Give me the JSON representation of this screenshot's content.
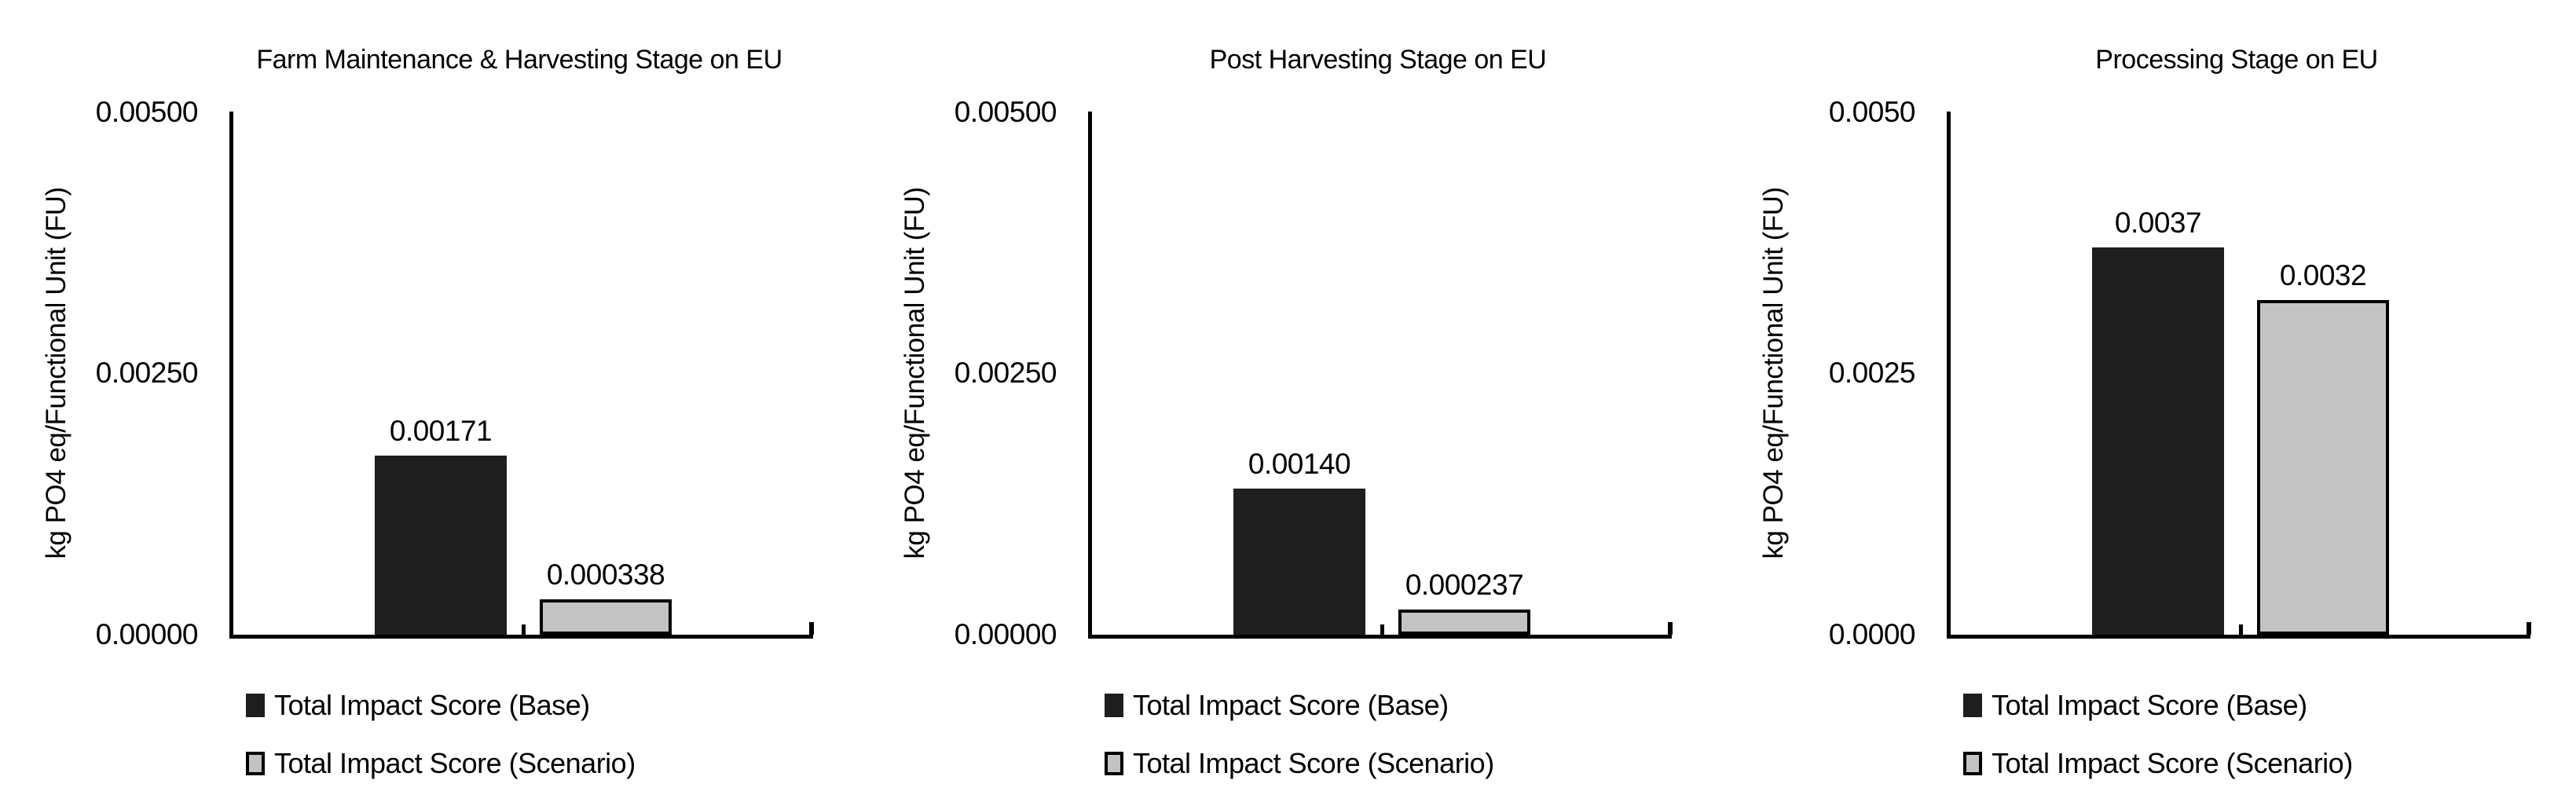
{
  "colors": {
    "base_series": "#1e1e1e",
    "scenario_series": "#c3c3c3",
    "axis": "#000000",
    "background": "#ffffff"
  },
  "chart_data": [
    {
      "type": "bar",
      "title": "Farm Maintenance & Harvesting Stage on EU",
      "ylabel": "kg PO4 eq/Functional Unit (FU)",
      "xlabel": "",
      "categories": [
        "Total Impact Score (Base)",
        "Total Impact Score (Scenario)"
      ],
      "values": [
        0.00171,
        0.000338
      ],
      "data_labels": [
        "0.00171",
        "0.000338"
      ],
      "ylim": [
        0,
        0.005
      ],
      "y_ticks_top_to_bottom": [
        "0.00500",
        "0.00250",
        "0.00000"
      ],
      "grid": false,
      "legend_position": "bottom-left"
    },
    {
      "type": "bar",
      "title": "Post Harvesting Stage on EU",
      "ylabel": "kg PO4 eq/Functional Unit (FU)",
      "xlabel": "",
      "categories": [
        "Total Impact Score (Base)",
        "Total Impact Score (Scenario)"
      ],
      "values": [
        0.0014,
        0.000237
      ],
      "data_labels": [
        "0.00140",
        "0.000237"
      ],
      "ylim": [
        0,
        0.005
      ],
      "y_ticks_top_to_bottom": [
        "0.00500",
        "0.00250",
        "0.00000"
      ],
      "grid": false,
      "legend_position": "bottom-left"
    },
    {
      "type": "bar",
      "title": "Processing Stage on EU",
      "ylabel": "kg PO4 eq/Functional Unit (FU)",
      "xlabel": "",
      "categories": [
        "Total Impact Score (Base)",
        "Total Impact Score (Scenario)"
      ],
      "values": [
        0.0037,
        0.0032
      ],
      "data_labels": [
        "0.0037",
        "0.0032"
      ],
      "ylim": [
        0,
        0.005
      ],
      "y_ticks_top_to_bottom": [
        "0.0050",
        "0.0025",
        "0.0000"
      ],
      "grid": false,
      "legend_position": "bottom-left"
    }
  ]
}
